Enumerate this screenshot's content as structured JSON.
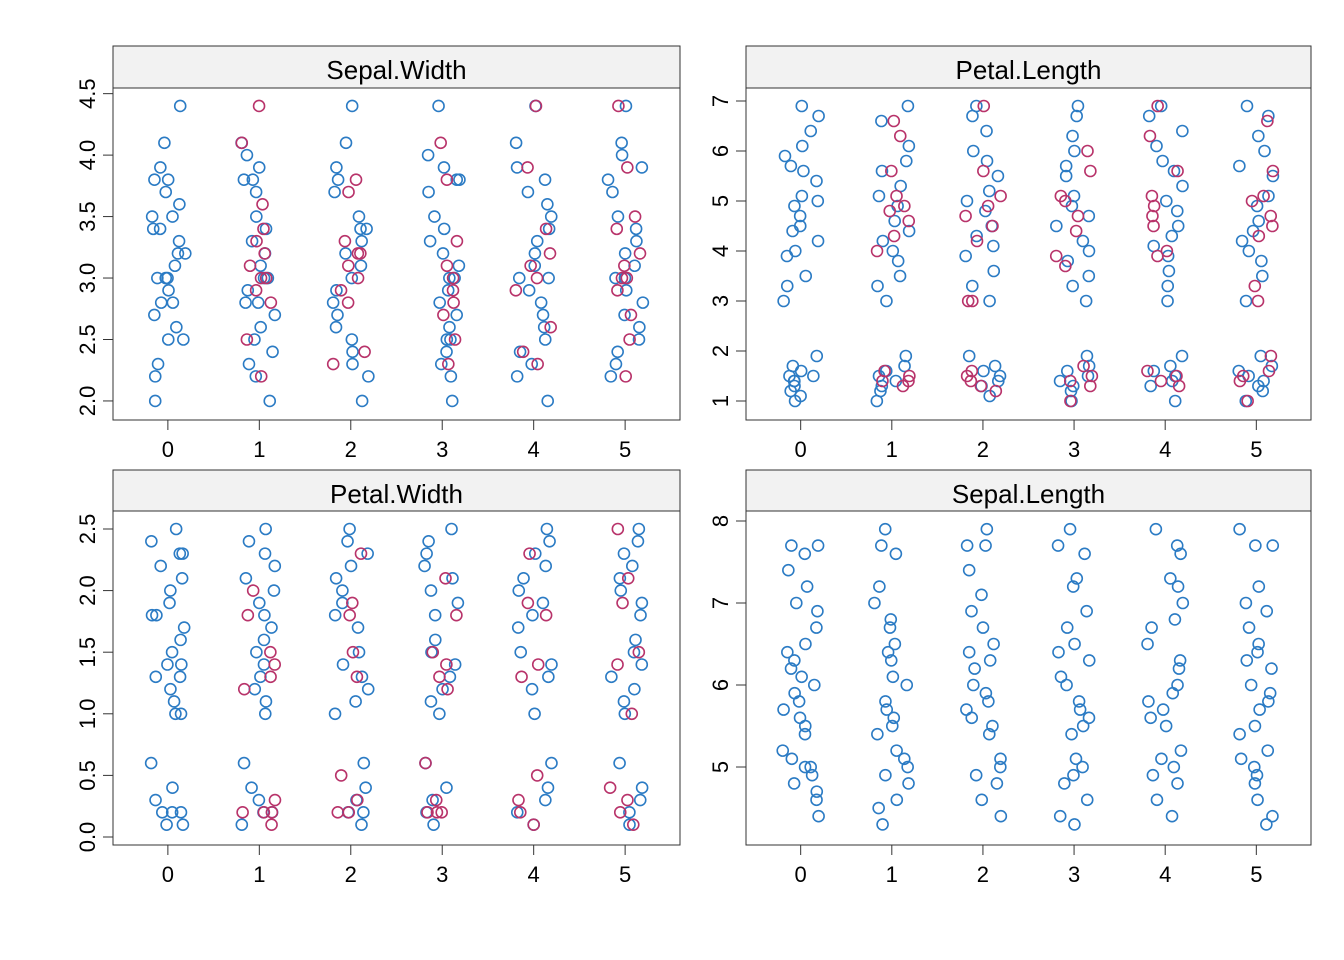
{
  "chart_data": [
    {
      "type": "strip",
      "title": "Sepal.Width",
      "categories": [
        0,
        1,
        2,
        3,
        4,
        5
      ],
      "xlim": [
        -0.6,
        5.6
      ],
      "xticks": [
        0,
        1,
        2,
        3,
        4,
        5
      ],
      "ylim": [
        1.845,
        4.546
      ],
      "yticks": [
        {
          "value": 2,
          "label": "2.0"
        },
        {
          "value": 2.5,
          "label": "2.5"
        },
        {
          "value": 3,
          "label": "3.0"
        },
        {
          "value": 3.5,
          "label": "3.5"
        },
        {
          "value": 4,
          "label": "4.0"
        },
        {
          "value": 4.5,
          "label": "4.5"
        }
      ],
      "series": [
        {
          "color": "#2b7bc4",
          "values": [
            [
              4.4,
              4.1,
              3.9,
              3.8,
              3.8,
              3.7,
              3.6,
              3.5,
              3.5,
              3.4,
              3.4,
              3.3,
              3.2,
              3.2,
              3.1,
              3.0,
              3.0,
              3.0,
              2.9,
              2.8,
              2.8,
              2.7,
              2.6,
              2.5,
              2.5,
              2.3,
              2.2,
              2.0
            ],
            [
              4.1,
              4.0,
              3.9,
              3.8,
              3.8,
              3.7,
              3.5,
              3.4,
              3.3,
              3.2,
              3.1,
              3.0,
              3.0,
              2.9,
              2.8,
              2.8,
              2.7,
              2.6,
              2.5,
              2.4,
              2.3,
              2.2,
              2.0
            ],
            [
              4.4,
              4.1,
              3.9,
              3.8,
              3.7,
              3.5,
              3.4,
              3.4,
              3.3,
              3.2,
              3.1,
              3.0,
              2.9,
              2.8,
              2.7,
              2.6,
              2.5,
              2.4,
              2.3,
              2.2,
              2.0
            ],
            [
              4.4,
              4.0,
              3.9,
              3.8,
              3.8,
              3.7,
              3.5,
              3.4,
              3.3,
              3.2,
              3.1,
              3.0,
              3.0,
              2.9,
              2.8,
              2.7,
              2.6,
              2.5,
              2.5,
              2.4,
              2.3,
              2.2,
              2.0
            ],
            [
              4.4,
              4.1,
              3.9,
              3.8,
              3.7,
              3.6,
              3.5,
              3.4,
              3.3,
              3.2,
              3.1,
              3.0,
              3.0,
              2.9,
              2.8,
              2.7,
              2.6,
              2.5,
              2.4,
              2.3,
              2.2,
              2.0
            ],
            [
              4.4,
              4.1,
              4.0,
              3.9,
              3.8,
              3.7,
              3.5,
              3.4,
              3.3,
              3.2,
              3.1,
              3.0,
              3.0,
              2.9,
              2.8,
              2.7,
              2.6,
              2.5,
              2.4,
              2.3,
              2.2
            ]
          ]
        },
        {
          "color": "#b8336a",
          "values": [
            [],
            [
              4.4,
              4.1,
              3.6,
              3.4,
              3.3,
              3.2,
              3.1,
              3.0,
              3.0,
              2.9,
              2.8,
              2.5,
              2.2
            ],
            [
              3.8,
              3.7,
              3.3,
              3.2,
              3.2,
              3.1,
              3.0,
              2.9,
              2.8,
              2.4,
              2.3
            ],
            [
              4.1,
              3.8,
              3.3,
              3.1,
              3.0,
              2.9,
              2.8,
              2.7,
              2.5,
              2.3
            ],
            [
              4.4,
              3.9,
              3.4,
              3.2,
              3.1,
              3.0,
              2.9,
              2.6,
              2.4,
              2.3
            ],
            [
              4.4,
              3.9,
              3.5,
              3.4,
              3.2,
              3.1,
              3.0,
              3.0,
              2.9,
              2.7,
              2.5,
              2.2
            ]
          ]
        }
      ]
    },
    {
      "type": "strip",
      "title": "Petal.Length",
      "categories": [
        0,
        1,
        2,
        3,
        4,
        5
      ],
      "xlim": [
        -0.6,
        5.6
      ],
      "xticks": [
        0,
        1,
        2,
        3,
        4,
        5
      ],
      "ylim": [
        0.62,
        7.26
      ],
      "yticks": [
        1,
        2,
        3,
        4,
        5,
        6,
        7
      ],
      "series": [
        {
          "color": "#2b7bc4",
          "values": [
            [
              6.9,
              6.7,
              6.4,
              6.1,
              5.9,
              5.7,
              5.6,
              5.4,
              5.1,
              5.0,
              4.9,
              4.7,
              4.5,
              4.4,
              4.2,
              4.0,
              3.9,
              3.5,
              3.3,
              3.0,
              1.9,
              1.7,
              1.6,
              1.5,
              1.5,
              1.4,
              1.4,
              1.3,
              1.2,
              1.1,
              1.0
            ],
            [
              6.9,
              6.6,
              6.1,
              5.8,
              5.6,
              5.3,
              5.1,
              4.9,
              4.6,
              4.4,
              4.2,
              4.0,
              3.8,
              3.5,
              3.3,
              3.0,
              1.9,
              1.7,
              1.6,
              1.5,
              1.4,
              1.3,
              1.2,
              1.0
            ],
            [
              6.9,
              6.7,
              6.4,
              6.0,
              5.8,
              5.5,
              5.2,
              5.0,
              4.8,
              4.5,
              4.3,
              4.1,
              3.9,
              3.6,
              3.3,
              3.0,
              1.9,
              1.7,
              1.6,
              1.5,
              1.4,
              1.3,
              1.1
            ],
            [
              6.9,
              6.7,
              6.3,
              6.0,
              5.7,
              5.5,
              5.1,
              4.9,
              4.7,
              4.5,
              4.2,
              4.0,
              3.8,
              3.5,
              3.3,
              3.0,
              1.9,
              1.7,
              1.6,
              1.5,
              1.4,
              1.3,
              1.2,
              1.0
            ],
            [
              6.9,
              6.7,
              6.4,
              6.1,
              5.8,
              5.6,
              5.3,
              5.0,
              4.8,
              4.5,
              4.3,
              4.1,
              3.9,
              3.6,
              3.3,
              3.0,
              1.9,
              1.7,
              1.6,
              1.5,
              1.4,
              1.3,
              1.0
            ],
            [
              6.9,
              6.7,
              6.3,
              6.0,
              5.7,
              5.5,
              5.1,
              4.9,
              4.6,
              4.4,
              4.2,
              4.0,
              3.8,
              3.5,
              3.0,
              1.9,
              1.7,
              1.6,
              1.5,
              1.4,
              1.3,
              1.2,
              1.0
            ]
          ]
        },
        {
          "color": "#b8336a",
          "values": [
            [],
            [
              6.6,
              6.3,
              5.6,
              5.1,
              4.9,
              4.8,
              4.6,
              4.3,
              4.0,
              1.6,
              1.5,
              1.4,
              1.4,
              1.3
            ],
            [
              6.9,
              5.6,
              5.1,
              4.9,
              4.7,
              4.5,
              4.2,
              3.0,
              3.0,
              1.6,
              1.5,
              1.4,
              1.3,
              1.2
            ],
            [
              6.0,
              5.6,
              5.1,
              5.0,
              4.7,
              4.4,
              3.9,
              3.7,
              1.7,
              1.5,
              1.4,
              1.3,
              1.0
            ],
            [
              6.9,
              6.3,
              5.6,
              5.1,
              4.9,
              4.7,
              4.5,
              4.0,
              3.9,
              1.6,
              1.5,
              1.4,
              1.3
            ],
            [
              6.6,
              5.6,
              5.1,
              5.0,
              4.7,
              4.5,
              4.3,
              3.0,
              3.3,
              1.9,
              1.6,
              1.5,
              1.4,
              1.0
            ]
          ]
        }
      ]
    },
    {
      "type": "strip",
      "title": "Petal.Width",
      "categories": [
        0,
        1,
        2,
        3,
        4,
        5
      ],
      "xlim": [
        -0.6,
        5.6
      ],
      "xticks": [
        0,
        1,
        2,
        3,
        4,
        5
      ],
      "ylim": [
        -0.065,
        2.646
      ],
      "yticks": [
        {
          "value": 0,
          "label": "0.0"
        },
        {
          "value": 0.5,
          "label": "0.5"
        },
        {
          "value": 1,
          "label": "1.0"
        },
        {
          "value": 1.5,
          "label": "1.5"
        },
        {
          "value": 2,
          "label": "2.0"
        },
        {
          "value": 2.5,
          "label": "2.5"
        }
      ],
      "series": [
        {
          "color": "#2b7bc4",
          "values": [
            [
              2.5,
              2.4,
              2.3,
              2.3,
              2.2,
              2.1,
              2.0,
              1.9,
              1.8,
              1.8,
              1.7,
              1.6,
              1.5,
              1.4,
              1.4,
              1.3,
              1.3,
              1.2,
              1.1,
              1.0,
              1.0,
              0.6,
              0.4,
              0.3,
              0.2,
              0.2,
              0.2,
              0.1,
              0.1
            ],
            [
              2.5,
              2.4,
              2.3,
              2.2,
              2.1,
              2.0,
              1.9,
              1.8,
              1.7,
              1.6,
              1.5,
              1.4,
              1.3,
              1.2,
              1.1,
              1.0,
              0.6,
              0.4,
              0.3,
              0.2,
              0.2,
              0.1
            ],
            [
              2.5,
              2.4,
              2.3,
              2.2,
              2.1,
              2.0,
              1.9,
              1.8,
              1.7,
              1.5,
              1.4,
              1.3,
              1.2,
              1.1,
              1.0,
              0.6,
              0.4,
              0.3,
              0.2,
              0.2,
              0.1
            ],
            [
              2.5,
              2.4,
              2.3,
              2.2,
              2.1,
              2.0,
              1.9,
              1.8,
              1.6,
              1.5,
              1.4,
              1.3,
              1.2,
              1.1,
              1.0,
              0.6,
              0.4,
              0.3,
              0.2,
              0.1
            ],
            [
              2.5,
              2.4,
              2.3,
              2.2,
              2.1,
              2.0,
              1.9,
              1.8,
              1.7,
              1.5,
              1.4,
              1.3,
              1.2,
              1.0,
              0.6,
              0.4,
              0.3,
              0.2,
              0.1
            ],
            [
              2.5,
              2.4,
              2.3,
              2.2,
              2.1,
              2.0,
              1.9,
              1.8,
              1.6,
              1.5,
              1.4,
              1.3,
              1.2,
              1.1,
              1.0,
              0.6,
              0.4,
              0.3,
              0.2,
              0.1
            ]
          ]
        },
        {
          "color": "#b8336a",
          "values": [
            [],
            [
              2.0,
              1.8,
              1.5,
              1.4,
              1.3,
              1.2,
              0.3,
              0.2,
              0.2,
              0.2,
              0.1
            ],
            [
              2.3,
              1.9,
              1.8,
              1.5,
              1.3,
              0.5,
              0.3,
              0.2,
              0.2
            ],
            [
              2.1,
              1.8,
              1.5,
              1.4,
              1.3,
              1.2,
              0.6,
              0.3,
              0.2,
              0.2,
              0.2
            ],
            [
              2.3,
              1.9,
              1.8,
              1.4,
              1.3,
              0.5,
              0.3,
              0.2,
              0.1
            ],
            [
              2.5,
              2.1,
              1.9,
              1.5,
              1.4,
              1.0,
              0.4,
              0.3,
              0.2,
              0.1
            ]
          ]
        }
      ]
    },
    {
      "type": "strip",
      "title": "Sepal.Length",
      "categories": [
        0,
        1,
        2,
        3,
        4,
        5
      ],
      "xlim": [
        -0.6,
        5.6
      ],
      "xticks": [
        0,
        1,
        2,
        3,
        4,
        5
      ],
      "ylim": [
        4.049,
        8.122
      ],
      "yticks": [
        5,
        6,
        7,
        8
      ],
      "series": [
        {
          "color": "#2b7bc4",
          "values": [
            [
              7.7,
              7.7,
              7.6,
              7.4,
              7.2,
              7.0,
              6.9,
              6.7,
              6.5,
              6.4,
              6.3,
              6.2,
              6.1,
              6.0,
              5.9,
              5.8,
              5.7,
              5.6,
              5.5,
              5.4,
              5.2,
              5.1,
              5.0,
              5.0,
              4.9,
              4.8,
              4.7,
              4.6,
              4.4
            ],
            [
              7.9,
              7.7,
              7.6,
              7.2,
              7.0,
              6.8,
              6.7,
              6.5,
              6.4,
              6.3,
              6.1,
              6.0,
              5.8,
              5.7,
              5.6,
              5.5,
              5.4,
              5.2,
              5.1,
              5.0,
              4.9,
              4.8,
              4.6,
              4.5,
              4.3
            ],
            [
              7.9,
              7.7,
              7.7,
              7.4,
              7.1,
              6.9,
              6.7,
              6.5,
              6.4,
              6.3,
              6.2,
              6.0,
              5.9,
              5.8,
              5.7,
              5.6,
              5.5,
              5.4,
              5.1,
              5.0,
              4.9,
              4.8,
              4.6,
              4.4
            ],
            [
              7.9,
              7.7,
              7.6,
              7.3,
              7.2,
              6.9,
              6.7,
              6.5,
              6.4,
              6.3,
              6.1,
              6.0,
              5.8,
              5.7,
              5.6,
              5.5,
              5.4,
              5.1,
              5.0,
              4.9,
              4.8,
              4.6,
              4.4,
              4.3
            ],
            [
              7.9,
              7.7,
              7.6,
              7.3,
              7.2,
              7.0,
              6.8,
              6.7,
              6.5,
              6.3,
              6.2,
              6.0,
              5.9,
              5.8,
              5.7,
              5.6,
              5.5,
              5.2,
              5.1,
              5.0,
              4.9,
              4.8,
              4.6,
              4.4
            ],
            [
              7.9,
              7.7,
              7.7,
              7.2,
              7.0,
              6.9,
              6.7,
              6.5,
              6.4,
              6.3,
              6.2,
              6.0,
              5.9,
              5.8,
              5.7,
              5.5,
              5.4,
              5.2,
              5.1,
              5.0,
              4.9,
              4.8,
              4.6,
              4.4,
              4.3
            ]
          ]
        }
      ]
    }
  ]
}
